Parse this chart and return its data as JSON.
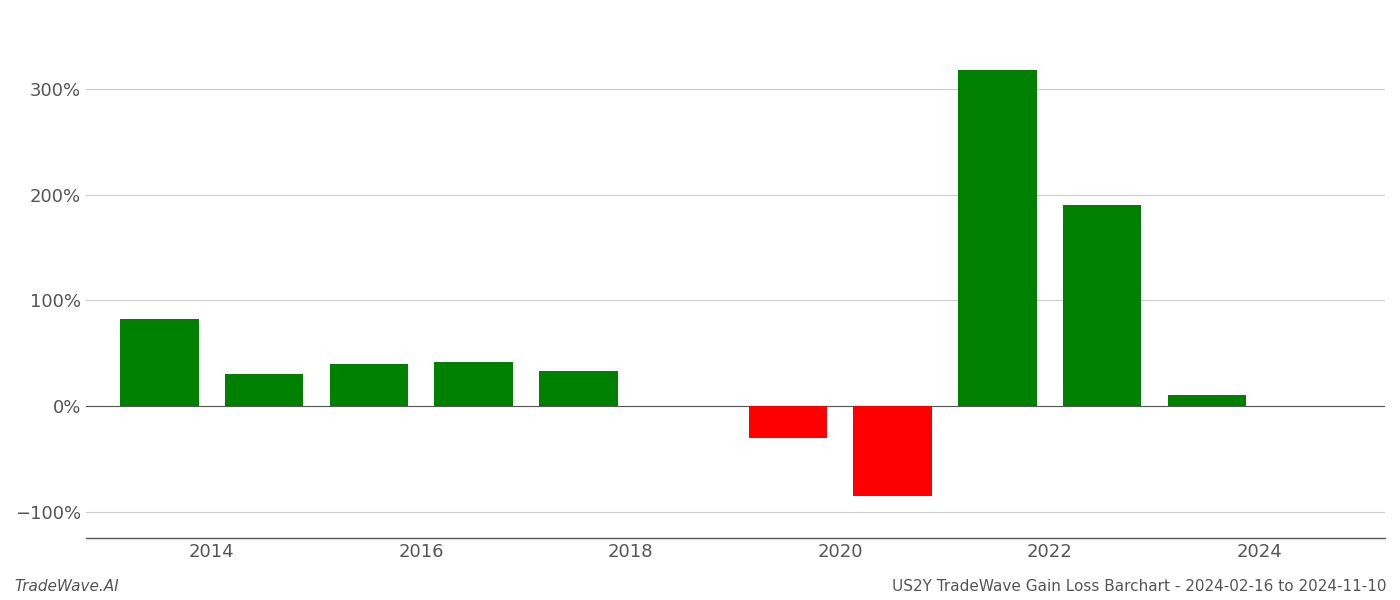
{
  "years": [
    2013.5,
    2014.5,
    2015.5,
    2016.5,
    2017.5,
    2019.5,
    2020.5,
    2021.5,
    2022.5,
    2023.5
  ],
  "values": [
    82,
    30,
    40,
    42,
    33,
    -30,
    -85,
    318,
    190,
    10
  ],
  "colors": [
    "#008000",
    "#008000",
    "#008000",
    "#008000",
    "#008000",
    "#ff0000",
    "#ff0000",
    "#008000",
    "#008000",
    "#008000"
  ],
  "ylim": [
    -125,
    370
  ],
  "yticks": [
    -100,
    0,
    100,
    200,
    300
  ],
  "ytick_labels": [
    "−100%",
    "0%",
    "100%",
    "200%",
    "300%"
  ],
  "xlim": [
    2012.8,
    2025.2
  ],
  "xticks": [
    2014,
    2016,
    2018,
    2020,
    2022,
    2024
  ],
  "xtick_labels": [
    "2014",
    "2016",
    "2018",
    "2020",
    "2022",
    "2024"
  ],
  "footer_left": "TradeWave.AI",
  "footer_right": "US2Y TradeWave Gain Loss Barchart - 2024-02-16 to 2024-11-10",
  "background_color": "#ffffff",
  "bar_width": 0.75,
  "grid_color": "#cccccc",
  "text_color": "#555555",
  "axis_color": "#555555",
  "zero_line_color": "#555555",
  "tick_fontsize": 13,
  "footer_fontsize": 11
}
